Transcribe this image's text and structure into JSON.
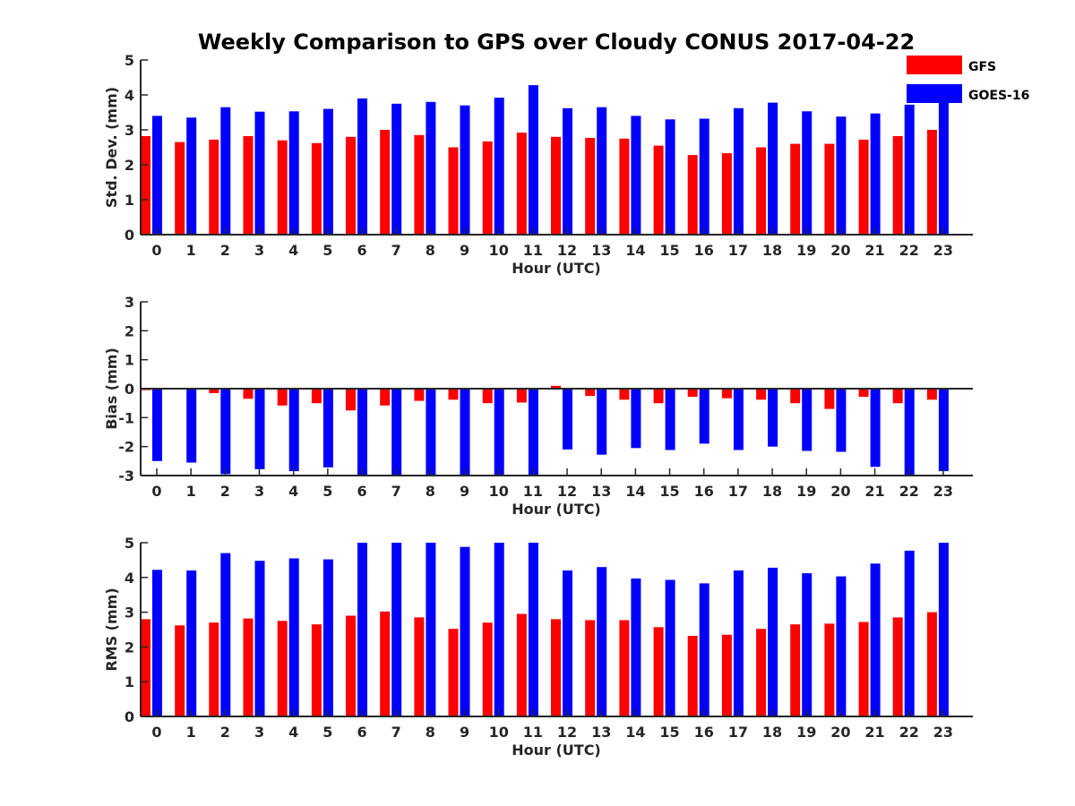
{
  "title": "Weekly Comparison to GPS over Cloudy CONUS 2017-04-22",
  "colors": {
    "GFS": "#ff0000",
    "GOES-16": "#0000ff",
    "axis": "#262626"
  },
  "legend": {
    "position": "top-right",
    "entries": [
      "GFS",
      "GOES-16"
    ]
  },
  "chart_data": [
    {
      "type": "bar",
      "title": "Weekly Comparison to GPS over Cloudy CONUS 2017-04-22",
      "xlabel": "Hour (UTC)",
      "ylabel": "Std. Dev. (mm)",
      "categories": [
        "0",
        "1",
        "2",
        "3",
        "4",
        "5",
        "6",
        "7",
        "8",
        "9",
        "10",
        "11",
        "12",
        "13",
        "14",
        "15",
        "16",
        "17",
        "18",
        "19",
        "20",
        "21",
        "22",
        "23"
      ],
      "ylim": [
        0,
        5
      ],
      "yticks": [
        0,
        1,
        2,
        3,
        4,
        5
      ],
      "series": [
        {
          "name": "GFS",
          "values": [
            2.82,
            2.65,
            2.72,
            2.82,
            2.7,
            2.62,
            2.8,
            3.0,
            2.85,
            2.5,
            2.67,
            2.92,
            2.8,
            2.77,
            2.75,
            2.55,
            2.28,
            2.33,
            2.5,
            2.6,
            2.6,
            2.72,
            2.82,
            3.0
          ]
        },
        {
          "name": "GOES-16",
          "values": [
            3.4,
            3.35,
            3.65,
            3.52,
            3.53,
            3.6,
            3.9,
            3.75,
            3.8,
            3.7,
            3.92,
            4.28,
            3.62,
            3.65,
            3.4,
            3.3,
            3.32,
            3.62,
            3.78,
            3.53,
            3.38,
            3.47,
            3.72,
            3.85
          ]
        }
      ]
    },
    {
      "type": "bar",
      "xlabel": "Hour (UTC)",
      "ylabel": "Bias (mm)",
      "categories": [
        "0",
        "1",
        "2",
        "3",
        "4",
        "5",
        "6",
        "7",
        "8",
        "9",
        "10",
        "11",
        "12",
        "13",
        "14",
        "15",
        "16",
        "17",
        "18",
        "19",
        "20",
        "21",
        "22",
        "23"
      ],
      "ylim": [
        -3,
        3
      ],
      "yticks": [
        -3,
        -2,
        -1,
        0,
        1,
        2,
        3
      ],
      "series": [
        {
          "name": "GFS",
          "values": [
            -0.05,
            -0.03,
            -0.15,
            -0.35,
            -0.58,
            -0.5,
            -0.75,
            -0.58,
            -0.42,
            -0.38,
            -0.5,
            -0.48,
            0.1,
            -0.25,
            -0.38,
            -0.5,
            -0.28,
            -0.33,
            -0.38,
            -0.5,
            -0.7,
            -0.28,
            -0.5,
            -0.38
          ]
        },
        {
          "name": "GOES-16",
          "values": [
            -2.5,
            -2.55,
            -2.95,
            -2.78,
            -2.85,
            -2.72,
            -3.0,
            -3.0,
            -3.0,
            -3.0,
            -3.0,
            -3.0,
            -2.1,
            -2.28,
            -2.05,
            -2.12,
            -1.9,
            -2.12,
            -2.0,
            -2.15,
            -2.18,
            -2.7,
            -2.98,
            -2.85
          ]
        }
      ]
    },
    {
      "type": "bar",
      "xlabel": "Hour (UTC)",
      "ylabel": "RMS (mm)",
      "categories": [
        "0",
        "1",
        "2",
        "3",
        "4",
        "5",
        "6",
        "7",
        "8",
        "9",
        "10",
        "11",
        "12",
        "13",
        "14",
        "15",
        "16",
        "17",
        "18",
        "19",
        "20",
        "21",
        "22",
        "23"
      ],
      "ylim": [
        0,
        5
      ],
      "yticks": [
        0,
        1,
        2,
        3,
        4,
        5
      ],
      "series": [
        {
          "name": "GFS",
          "values": [
            2.8,
            2.62,
            2.7,
            2.82,
            2.75,
            2.65,
            2.9,
            3.02,
            2.85,
            2.52,
            2.7,
            2.95,
            2.8,
            2.77,
            2.77,
            2.57,
            2.32,
            2.35,
            2.52,
            2.65,
            2.67,
            2.72,
            2.85,
            3.0
          ]
        },
        {
          "name": "GOES-16",
          "values": [
            4.22,
            4.2,
            4.7,
            4.48,
            4.55,
            4.52,
            5.0,
            5.0,
            5.0,
            4.88,
            5.0,
            5.0,
            4.2,
            4.3,
            3.97,
            3.93,
            3.83,
            4.2,
            4.28,
            4.12,
            4.03,
            4.4,
            4.77,
            5.0
          ]
        }
      ]
    }
  ]
}
